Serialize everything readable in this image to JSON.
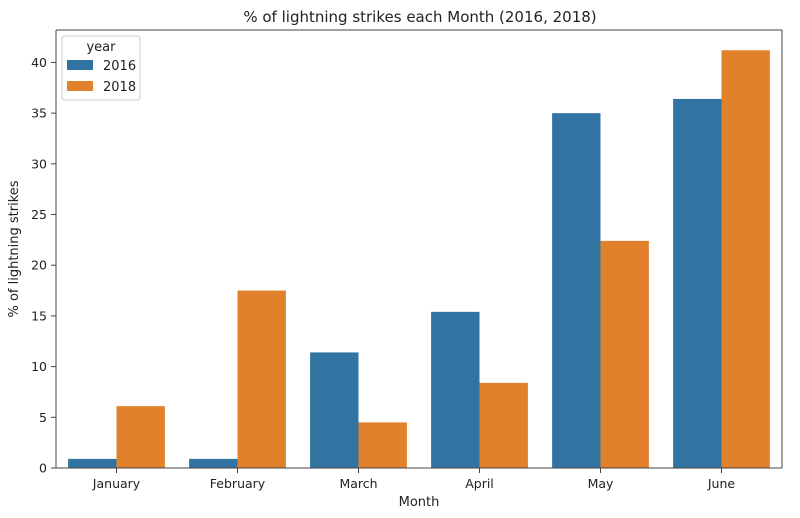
{
  "chart_data": {
    "type": "bar",
    "title": "% of lightning strikes each Month (2016, 2018)",
    "xlabel": "Month",
    "ylabel": "% of lightning strikes",
    "categories": [
      "January",
      "February",
      "March",
      "April",
      "May",
      "June"
    ],
    "series": [
      {
        "name": "2016",
        "color": "#3274a1",
        "values": [
          0.9,
          0.9,
          11.4,
          15.4,
          35.0,
          36.4
        ]
      },
      {
        "name": "2018",
        "color": "#e1812c",
        "values": [
          6.1,
          17.5,
          4.5,
          8.4,
          22.4,
          41.2
        ]
      }
    ],
    "ylim": [
      0,
      43.2
    ],
    "yticks": [
      0,
      5,
      10,
      15,
      20,
      25,
      30,
      35,
      40
    ],
    "grid": false,
    "legend": {
      "title": "year",
      "placement": "top-left"
    }
  }
}
